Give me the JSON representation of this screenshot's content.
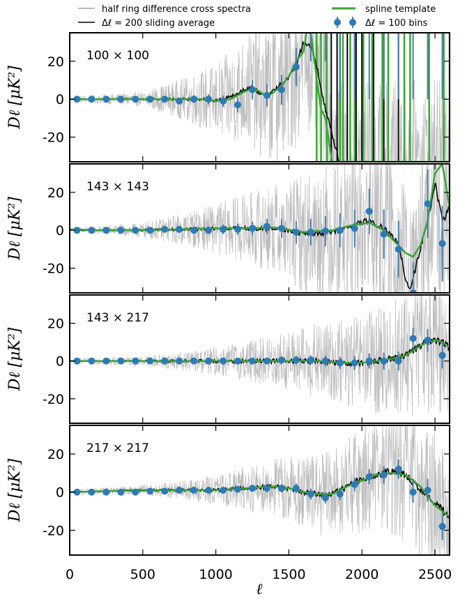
{
  "chart_data": {
    "type": "line",
    "xlabel": "ℓ",
    "ylabel": "Dℓ [μK²]",
    "xlim": [
      0,
      2600
    ],
    "ylim": [
      -33,
      35
    ],
    "x_ticks": [
      0,
      500,
      1000,
      1500,
      2000,
      2500
    ],
    "y_ticks": [
      -20,
      0,
      20
    ],
    "y_tick_labels": [
      "-20",
      "0",
      "20"
    ],
    "legend": {
      "placement": "top",
      "entries": [
        {
          "label": "half ring difference cross spectra",
          "color": "#bdbdbd",
          "marker": "line"
        },
        {
          "label": "Δℓ = 200 sliding average",
          "color": "#000000",
          "marker": "line"
        },
        {
          "label": "spline template",
          "color": "#3aa534",
          "marker": "line"
        },
        {
          "label": "Δℓ = 100  bins",
          "color": "#2c7bb6",
          "marker": "errorbar-point"
        }
      ]
    },
    "colors": {
      "raw": "#bdbdbd",
      "average": "#000000",
      "spline": "#3aa534",
      "bins": "#2c7bb6",
      "errorbars": "#4a7fa8"
    },
    "panels": [
      {
        "label": "100 × 100",
        "noise_envelope": {
          "x": [
            0,
            500,
            800,
            1000,
            1200,
            1400,
            1600,
            1800,
            2600
          ],
          "y": [
            1,
            3,
            9,
            15,
            22,
            30,
            35,
            35,
            35
          ]
        },
        "spline": {
          "x": [
            0,
            900,
            1000,
            1100,
            1200,
            1250,
            1300,
            1350,
            1400,
            1450,
            1500,
            1550,
            1600,
            1620,
            1650,
            1700,
            1720,
            1750,
            1780,
            1800,
            1850,
            1900,
            1950,
            2000,
            2400,
            2500,
            2600
          ],
          "y": [
            0,
            0,
            -1,
            0,
            4,
            6,
            4,
            1,
            4,
            7,
            12,
            20,
            25,
            35,
            35,
            5,
            -5,
            -10,
            -25,
            -35,
            -35,
            -35,
            -35,
            -35,
            -35,
            -35,
            -35
          ]
        },
        "average": {
          "x": [
            0,
            900,
            1000,
            1100,
            1200,
            1250,
            1300,
            1350,
            1400,
            1450,
            1500,
            1550,
            1600,
            1650,
            1700,
            1750,
            1800,
            1850
          ],
          "y": [
            0,
            0,
            -1,
            1,
            5,
            6,
            3,
            2,
            5,
            8,
            12,
            18,
            30,
            28,
            14,
            -5,
            -20,
            -35
          ]
        },
        "spikes": {
          "green": [
            1690,
            1720,
            1760,
            1850,
            1870,
            1920,
            1950,
            2010,
            2070,
            2140,
            2180,
            2290,
            2330,
            2460,
            2560,
            2600
          ],
          "black": [
            1760,
            1790,
            1830,
            1870,
            1900,
            1960,
            2000,
            2080,
            2150,
            2250,
            2330
          ]
        },
        "bins": {
          "x": [
            50,
            150,
            250,
            350,
            450,
            550,
            650,
            750,
            850,
            950,
            1050,
            1150,
            1250,
            1350,
            1450,
            1550,
            1650,
            1750,
            1850,
            1950,
            2050,
            2150,
            2250,
            2350,
            2450,
            2550
          ],
          "y": [
            0,
            0,
            0,
            0,
            0,
            0,
            0,
            -1,
            0,
            0,
            -1,
            -3,
            5,
            2,
            5,
            17,
            40,
            40,
            40,
            40,
            40,
            40,
            40,
            40,
            40,
            40
          ],
          "err": [
            0.5,
            0.5,
            0.6,
            0.7,
            0.8,
            1,
            1.2,
            1.5,
            2,
            2.5,
            3,
            4,
            5,
            6,
            8,
            10,
            20,
            20,
            40,
            40,
            40,
            40,
            40,
            40,
            40,
            40
          ]
        }
      },
      {
        "label": "143 × 143",
        "noise_envelope": {
          "x": [
            0,
            500,
            800,
            1000,
            1200,
            1400,
            1600,
            1800,
            2000,
            2600
          ],
          "y": [
            1,
            3,
            7,
            10,
            14,
            18,
            24,
            30,
            35,
            35
          ]
        },
        "spline": {
          "x": [
            0,
            200,
            500,
            1000,
            1200,
            1400,
            1600,
            1800,
            1950,
            2050,
            2150,
            2250,
            2300,
            2350,
            2400,
            2450,
            2500,
            2550,
            2600
          ],
          "y": [
            0.5,
            0,
            0,
            1,
            1,
            1.5,
            -1,
            0,
            3,
            4,
            0,
            -8,
            -12,
            -14,
            -8,
            5,
            30,
            35,
            12
          ]
        },
        "average": {
          "x": [
            0,
            500,
            1000,
            1200,
            1400,
            1600,
            1800,
            1950,
            2050,
            2100,
            2200,
            2250,
            2300,
            2330,
            2360,
            2400,
            2450,
            2500,
            2550,
            2600
          ],
          "y": [
            0,
            0,
            1,
            1,
            1,
            -2,
            -1,
            3,
            5,
            3,
            -2,
            -8,
            -25,
            -32,
            -22,
            -10,
            6,
            25,
            5,
            12
          ]
        },
        "bins": {
          "x": [
            50,
            150,
            250,
            350,
            450,
            550,
            650,
            750,
            850,
            950,
            1050,
            1150,
            1250,
            1350,
            1450,
            1550,
            1650,
            1750,
            1850,
            1950,
            2050,
            2150,
            2250,
            2350,
            2450,
            2550
          ],
          "y": [
            0,
            0,
            0,
            0,
            0,
            0,
            0.5,
            0.5,
            0,
            0,
            0.5,
            0.5,
            1,
            2,
            1,
            -1,
            -1,
            -0.5,
            0,
            1,
            10,
            -2,
            -10,
            -33,
            14,
            -7
          ],
          "err": [
            0.5,
            0.5,
            0.5,
            0.6,
            0.7,
            0.8,
            1,
            1.2,
            1.5,
            2,
            2.5,
            3,
            3.5,
            4,
            5,
            6,
            7,
            8,
            9,
            10,
            12,
            13,
            15,
            16,
            18,
            20
          ]
        }
      },
      {
        "label": "143 × 217",
        "noise_envelope": {
          "x": [
            0,
            500,
            800,
            1000,
            1200,
            1400,
            1600,
            1800,
            2000,
            2200,
            2400,
            2600
          ],
          "y": [
            1,
            2,
            4,
            6,
            8,
            11,
            14,
            17,
            20,
            24,
            28,
            30
          ]
        },
        "spline": {
          "x": [
            0,
            500,
            1000,
            1500,
            1700,
            1900,
            2000,
            2100,
            2200,
            2300,
            2400,
            2450,
            2500,
            2550,
            2600
          ],
          "y": [
            0,
            0,
            0,
            0,
            0,
            -1,
            -1,
            0,
            1,
            3,
            8,
            10,
            11,
            10,
            7
          ]
        },
        "average": {
          "x": [
            0,
            500,
            1000,
            1500,
            1700,
            1900,
            2000,
            2100,
            2200,
            2300,
            2400,
            2450,
            2500,
            2550,
            2600
          ],
          "y": [
            0,
            0,
            0,
            0,
            0,
            -1,
            -1,
            0,
            1,
            3,
            8,
            10,
            11,
            10,
            7
          ]
        },
        "bins": {
          "x": [
            50,
            150,
            250,
            350,
            450,
            550,
            650,
            750,
            850,
            950,
            1050,
            1150,
            1250,
            1350,
            1450,
            1550,
            1650,
            1750,
            1850,
            1950,
            2050,
            2150,
            2250,
            2350,
            2450,
            2550
          ],
          "y": [
            0,
            0,
            0,
            0,
            0,
            0,
            0,
            0,
            0,
            0,
            0,
            0,
            0,
            0,
            0.5,
            0.5,
            0.5,
            0,
            -1,
            -1,
            0,
            0,
            0,
            12,
            11,
            3
          ],
          "err": [
            0.5,
            0.5,
            0.5,
            0.5,
            0.5,
            0.5,
            0.6,
            0.7,
            0.8,
            1,
            1.2,
            1.4,
            1.6,
            1.8,
            2,
            2.2,
            2.5,
            2.8,
            3.2,
            3.6,
            4,
            4.5,
            5,
            5.5,
            6,
            7
          ]
        }
      },
      {
        "label": "217 × 217",
        "noise_envelope": {
          "x": [
            0,
            500,
            800,
            1000,
            1200,
            1400,
            1600,
            1800,
            2000,
            2200,
            2400,
            2600
          ],
          "y": [
            1,
            2,
            4,
            6,
            9,
            12,
            15,
            18,
            22,
            26,
            30,
            30
          ]
        },
        "spline": {
          "x": [
            0,
            500,
            1000,
            1200,
            1400,
            1500,
            1600,
            1700,
            1800,
            1900,
            2000,
            2100,
            2200,
            2300,
            2400,
            2500,
            2600
          ],
          "y": [
            0,
            1,
            1,
            2,
            3,
            2,
            0,
            -1,
            -1,
            3,
            6,
            9,
            10,
            9,
            3,
            -7,
            -13
          ]
        },
        "average": {
          "x": [
            0,
            500,
            1000,
            1200,
            1400,
            1500,
            1600,
            1700,
            1800,
            1900,
            2000,
            2100,
            2200,
            2250,
            2300,
            2400,
            2500,
            2550,
            2600
          ],
          "y": [
            0,
            1,
            1,
            2,
            3,
            2,
            0,
            -1,
            -1,
            3,
            7,
            9,
            11,
            10,
            9,
            2,
            -6,
            -9,
            -14
          ]
        },
        "bins": {
          "x": [
            50,
            150,
            250,
            350,
            450,
            550,
            650,
            750,
            850,
            950,
            1050,
            1150,
            1250,
            1350,
            1450,
            1550,
            1650,
            1750,
            1850,
            1950,
            2050,
            2150,
            2250,
            2350,
            2450,
            2550
          ],
          "y": [
            0,
            0,
            0,
            0,
            0,
            0.5,
            0.5,
            1,
            1,
            1,
            1,
            1.5,
            2,
            2,
            2,
            2,
            -1,
            -3,
            -1,
            4,
            8,
            9,
            12,
            0,
            1,
            -18
          ],
          "err": [
            0.5,
            0.5,
            0.5,
            0.5,
            0.5,
            0.6,
            0.7,
            0.8,
            1,
            1.2,
            1.4,
            1.6,
            1.8,
            2,
            2.2,
            2.5,
            2.8,
            3,
            3.3,
            3.6,
            4,
            4.5,
            5,
            5.5,
            6,
            7
          ]
        }
      }
    ]
  }
}
